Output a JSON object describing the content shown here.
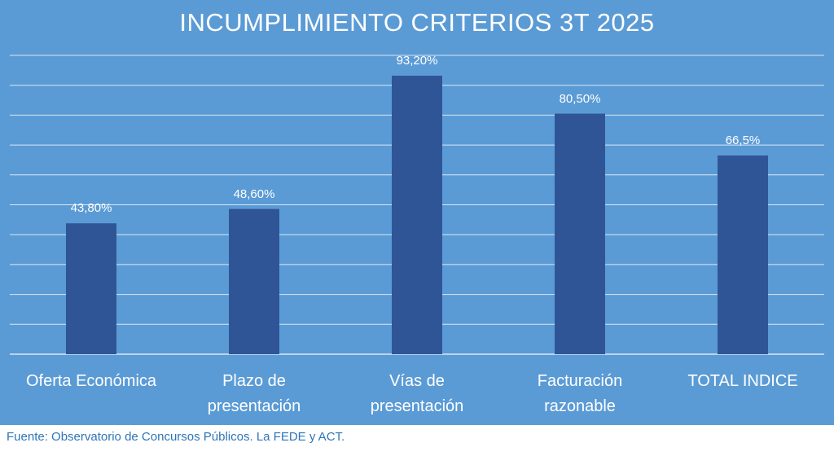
{
  "chart_data": {
    "type": "bar",
    "title": "INCUMPLIMIENTO CRITERIOS 3T 2025",
    "categories": [
      "Oferta Económica",
      "Plazo de\npresentación",
      "Vías de\npresentación",
      "Facturación\nrazonable",
      "TOTAL INDICE"
    ],
    "values": [
      43.8,
      48.6,
      93.2,
      80.5,
      66.5
    ],
    "data_labels": [
      "43,80%",
      "48,60%",
      "93,20%",
      "80,50%",
      "66,5%"
    ],
    "ylim": [
      0,
      100
    ],
    "gridlines": 10,
    "xlabel": "",
    "ylabel": "",
    "bar_color": "#2f5597",
    "grid_color": "#d9e6f4"
  },
  "source": "Fuente: Observatorio de Concursos Públicos. La FEDE y ACT.",
  "colors": {
    "background": "#5b9bd5",
    "text": "#ffffff",
    "source_text": "#2e75b6"
  }
}
